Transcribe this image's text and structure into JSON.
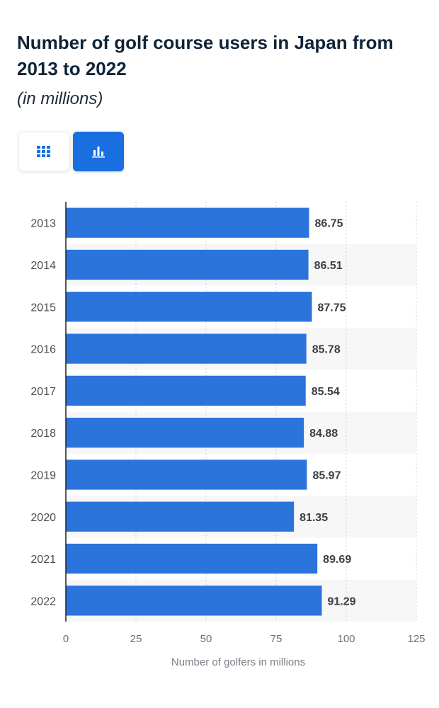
{
  "page": {
    "title": "Number of golf course users in Japan from 2013 to 2022",
    "subtitle": "(in millions)"
  },
  "toolbar": {
    "table_view_icon": "table-grid-icon",
    "chart_view_icon": "bar-chart-icon",
    "accent": "#1a6fe0"
  },
  "chart_data": {
    "type": "bar",
    "orientation": "horizontal",
    "categories": [
      "2013",
      "2014",
      "2015",
      "2016",
      "2017",
      "2018",
      "2019",
      "2020",
      "2021",
      "2022"
    ],
    "values": [
      86.75,
      86.51,
      87.75,
      85.78,
      85.54,
      84.88,
      85.97,
      81.35,
      89.69,
      91.29
    ],
    "value_labels": [
      "86.75",
      "86.51",
      "87.75",
      "85.78",
      "85.54",
      "84.88",
      "85.97",
      "81.35",
      "89.69",
      "91.29"
    ],
    "xlabel": "Number of golfers in millions",
    "xlim": [
      0,
      125
    ],
    "xticks": [
      0,
      25,
      50,
      75,
      100,
      125
    ],
    "xtick_labels": [
      "0",
      "25",
      "50",
      "75",
      "100",
      "125"
    ],
    "grid": true,
    "bar_color": "#2a74db"
  }
}
